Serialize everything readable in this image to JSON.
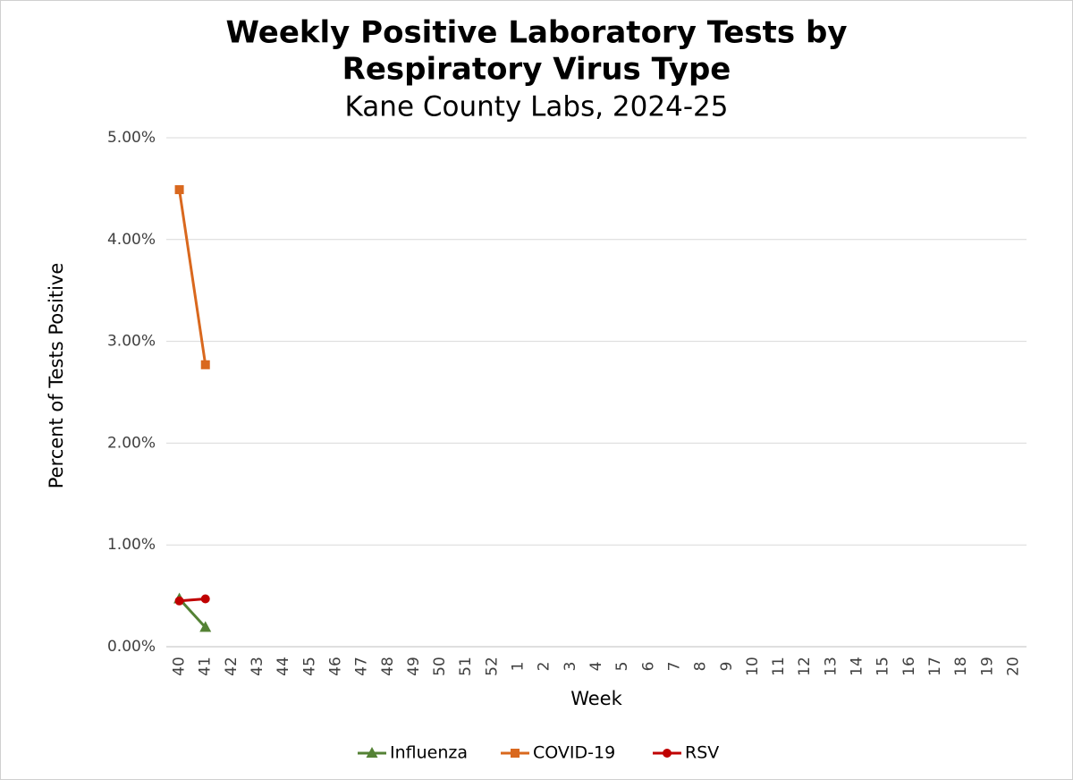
{
  "chart_data": {
    "type": "line",
    "title": [
      "Weekly Positive Laboratory Tests by",
      "Respiratory Virus Type"
    ],
    "subtitle": "Kane County Labs, 2024-25",
    "x_label": "Week",
    "y_label": "Percent of Tests Positive",
    "categories": [
      "40",
      "41",
      "42",
      "43",
      "44",
      "45",
      "46",
      "47",
      "48",
      "49",
      "50",
      "51",
      "52",
      "1",
      "2",
      "3",
      "4",
      "5",
      "6",
      "7",
      "8",
      "9",
      "10",
      "11",
      "12",
      "13",
      "14",
      "15",
      "16",
      "17",
      "18",
      "19",
      "20"
    ],
    "series": [
      {
        "name": "Influenza",
        "color": "#548235",
        "marker": "triangle",
        "values": [
          0.47,
          0.19,
          null,
          null,
          null,
          null,
          null,
          null,
          null,
          null,
          null,
          null,
          null,
          null,
          null,
          null,
          null,
          null,
          null,
          null,
          null,
          null,
          null,
          null,
          null,
          null,
          null,
          null,
          null,
          null,
          null,
          null,
          null
        ]
      },
      {
        "name": "COVID-19",
        "color": "#d9681e",
        "marker": "square",
        "values": [
          4.49,
          2.77,
          null,
          null,
          null,
          null,
          null,
          null,
          null,
          null,
          null,
          null,
          null,
          null,
          null,
          null,
          null,
          null,
          null,
          null,
          null,
          null,
          null,
          null,
          null,
          null,
          null,
          null,
          null,
          null,
          null,
          null,
          null
        ]
      },
      {
        "name": "RSV",
        "color": "#c00000",
        "marker": "circle",
        "values": [
          0.45,
          0.47,
          null,
          null,
          null,
          null,
          null,
          null,
          null,
          null,
          null,
          null,
          null,
          null,
          null,
          null,
          null,
          null,
          null,
          null,
          null,
          null,
          null,
          null,
          null,
          null,
          null,
          null,
          null,
          null,
          null,
          null,
          null
        ]
      }
    ],
    "ylim": [
      0,
      5
    ],
    "yticks": [
      {
        "value": 0,
        "label": "0.00%"
      },
      {
        "value": 1,
        "label": "1.00%"
      },
      {
        "value": 2,
        "label": "2.00%"
      },
      {
        "value": 3,
        "label": "3.00%"
      },
      {
        "value": 4,
        "label": "4.00%"
      },
      {
        "value": 5,
        "label": "5.00%"
      }
    ],
    "grid": true,
    "legend": "bottom"
  }
}
